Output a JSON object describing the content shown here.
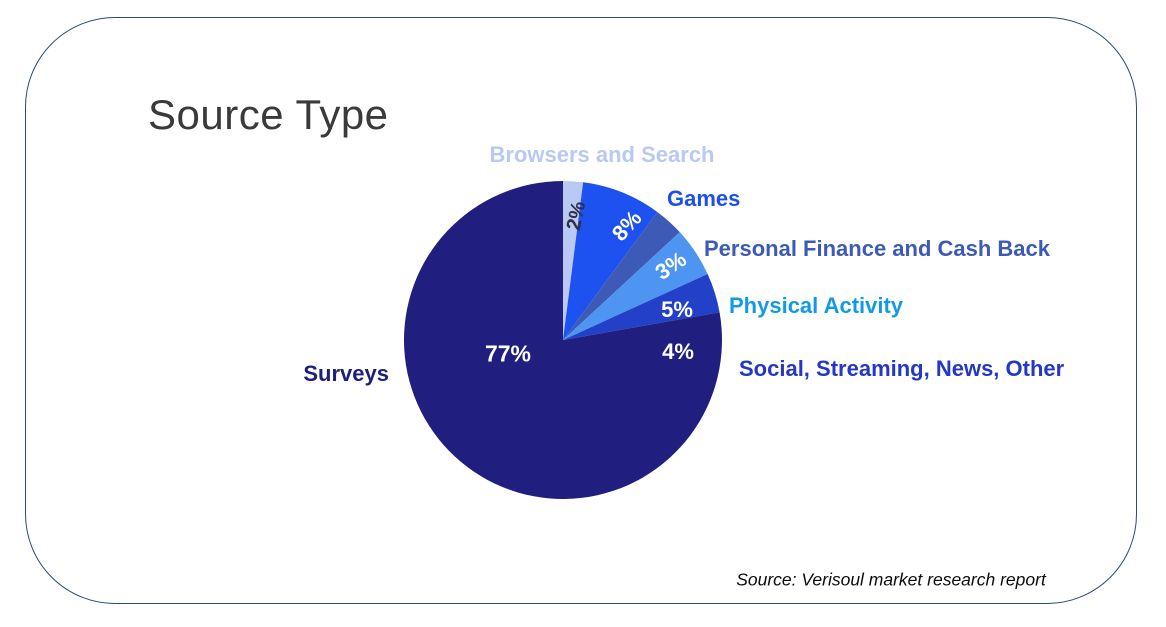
{
  "card": {
    "border_color": "#2c4a78"
  },
  "chart_data": {
    "type": "pie",
    "title": "Source Type",
    "source_note": "Source: Verisoul market research report",
    "start_angle_deg": 0,
    "direction": "clockwise",
    "legend_position": "labels-around-pie",
    "slices": [
      {
        "label": "Browsers and Search",
        "value": 2,
        "pct_label": "2%",
        "color": "#b9c9f3",
        "label_color": "#b9c9f3",
        "pct_color": "#2f2f45"
      },
      {
        "label": "Games",
        "value": 8,
        "pct_label": "8%",
        "color": "#1d52f0",
        "label_color": "#1d4ff0",
        "pct_color": "#ffffff"
      },
      {
        "label": "Personal Finance and Cash Back",
        "value": 3,
        "pct_label": "3%",
        "color": "#3d5ab6",
        "label_color": "#3d5ab7",
        "pct_color": "#ffffff"
      },
      {
        "label": "Physical Activity",
        "value": 5,
        "pct_label": "5%",
        "color": "#4e95f2",
        "label_color": "#129ae8",
        "pct_color": "#ffffff"
      },
      {
        "label": "Social, Streaming, News, Other",
        "value": 4,
        "pct_label": "4%",
        "color": "#2340c9",
        "label_color": "#2537c7",
        "pct_color": "#ffffff"
      },
      {
        "label": "Surveys",
        "value": 77,
        "pct_label": "77%",
        "color": "#201f80",
        "label_color": "#1d1f78",
        "pct_color": "#ffffff"
      }
    ]
  }
}
